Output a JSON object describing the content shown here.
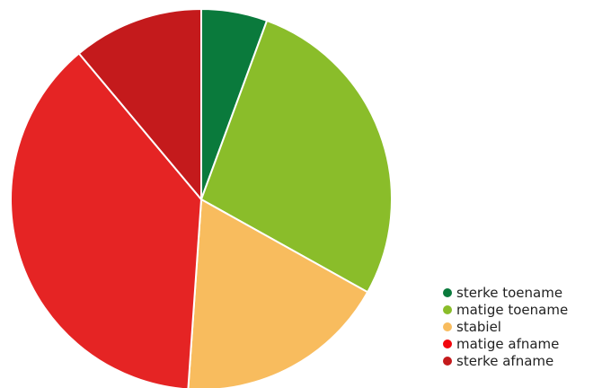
{
  "chart_data": {
    "type": "pie",
    "title": "",
    "legend_position": "bottom-right",
    "slices": [
      {
        "label": "sterke toename",
        "value": 5.6,
        "color": "#0a7a3c"
      },
      {
        "label": "matige toename",
        "value": 27.5,
        "color": "#8abd2a"
      },
      {
        "label": "stabiel",
        "value": 18.0,
        "color": "#f8bc5e"
      },
      {
        "label": "matige afname",
        "value": 37.8,
        "color": "#e52424"
      },
      {
        "label": "sterke afname",
        "value": 11.1,
        "color": "#c41a1c"
      }
    ],
    "legend_order": [
      {
        "label": "sterke toename",
        "color": "#0a7a3c"
      },
      {
        "label": "matige toename",
        "color": "#8abd2a"
      },
      {
        "label": "stabiel",
        "color": "#f8bc5e"
      },
      {
        "label": "matige afname",
        "color": "#f2060d"
      },
      {
        "label": "sterke afname",
        "color": "#c41a1c"
      }
    ]
  }
}
